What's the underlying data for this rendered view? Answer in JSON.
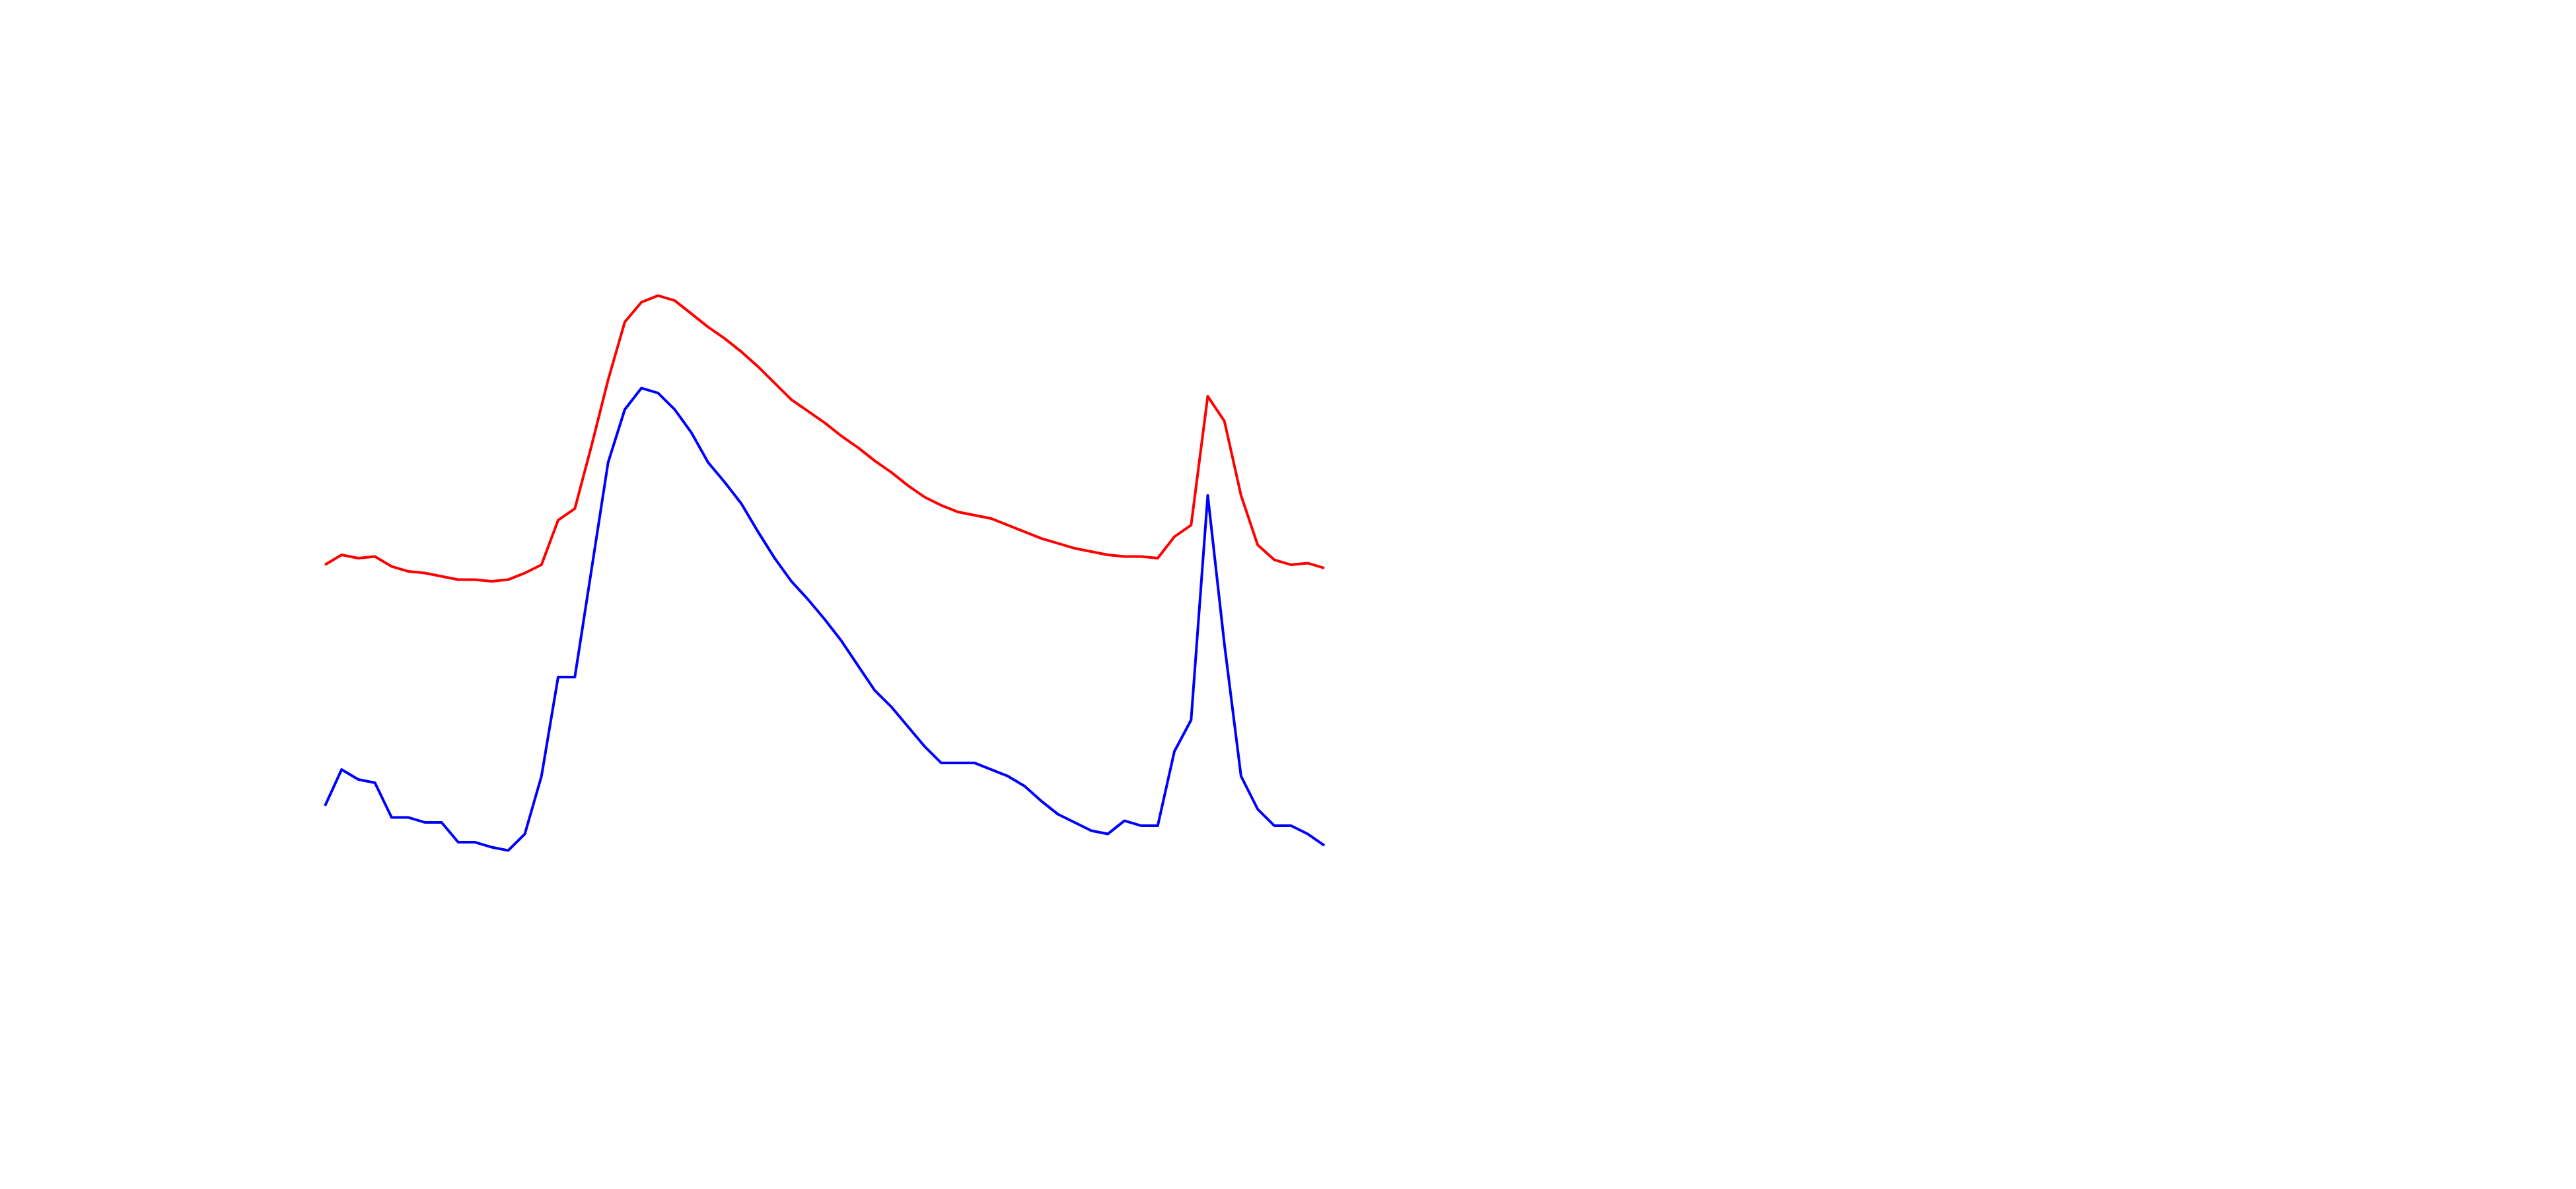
{
  "chart_data": {
    "type": "line",
    "x": [
      0,
      2,
      4,
      6,
      8,
      10,
      12,
      14,
      16,
      18,
      20,
      22,
      24,
      26,
      28,
      30,
      32,
      34,
      36,
      38,
      40,
      42,
      44,
      46,
      48,
      50,
      52,
      54,
      56,
      58,
      60,
      62,
      64,
      66,
      68,
      70,
      72,
      74,
      76,
      78,
      80,
      82,
      84,
      86,
      88,
      90,
      92,
      94,
      96,
      98,
      100,
      102,
      104,
      106,
      108,
      110,
      112,
      114,
      116,
      118,
      120
    ],
    "xlim": [
      0,
      120
    ],
    "ylim": [
      0,
      380
    ],
    "series": [
      {
        "color": "#ff0000",
        "values": [
          198,
          204,
          202,
          203,
          197,
          194,
          193,
          191,
          189,
          189,
          188,
          189,
          193,
          198,
          225,
          232,
          270,
          310,
          345,
          357,
          361,
          358,
          350,
          342,
          335,
          327,
          318,
          308,
          298,
          291,
          284,
          276,
          269,
          261,
          254,
          246,
          239,
          234,
          230,
          228,
          226,
          222,
          218,
          214,
          211,
          208,
          206,
          204,
          203,
          203,
          202,
          215,
          222,
          300,
          285,
          240,
          210,
          201,
          198,
          199,
          196
        ]
      },
      {
        "color": "#0000ff",
        "values": [
          52,
          74,
          68,
          66,
          45,
          45,
          42,
          42,
          30,
          30,
          27,
          25,
          35,
          70,
          130,
          130,
          195,
          260,
          292,
          305,
          302,
          292,
          278,
          260,
          248,
          235,
          218,
          202,
          188,
          177,
          165,
          152,
          137,
          122,
          112,
          100,
          88,
          78,
          78,
          78,
          74,
          70,
          64,
          55,
          47,
          42,
          37,
          35,
          43,
          40,
          40,
          85,
          104,
          240,
          150,
          70,
          50,
          40,
          40,
          35,
          28
        ]
      }
    ]
  }
}
